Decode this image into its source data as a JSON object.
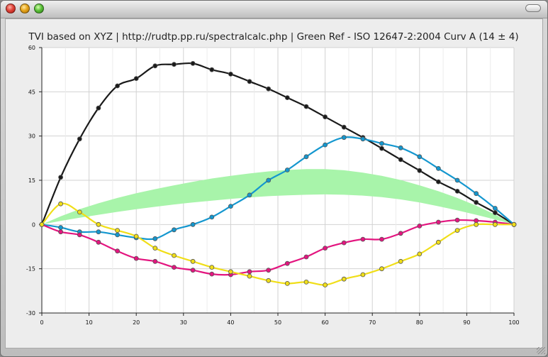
{
  "window": {
    "controls": [
      "close-icon",
      "minimize-icon",
      "zoom-icon",
      "toolbar-toggle-icon"
    ]
  },
  "chart_data": {
    "type": "line",
    "title": "TVI based on XYZ | http://rudtp.pp.ru/spectralcalc.php | Green Ref - ISO 12647-2:2004 Curv A (14 ± 4)",
    "xlabel": "",
    "ylabel": "",
    "xlim": [
      0,
      100
    ],
    "ylim": [
      -30,
      60
    ],
    "xticks": [
      0,
      10,
      20,
      30,
      40,
      50,
      60,
      70,
      80,
      90,
      100
    ],
    "yticks": [
      -30,
      -15,
      0,
      15,
      30,
      45,
      60
    ],
    "grid": true,
    "legend": "none",
    "band": {
      "color": "#a8f4aa",
      "x": [
        0,
        4,
        8,
        12,
        16,
        20,
        24,
        28,
        32,
        36,
        40,
        44,
        48,
        52,
        56,
        60,
        64,
        68,
        72,
        76,
        80,
        84,
        88,
        92,
        96,
        100
      ],
      "lower": [
        0,
        1.2,
        2.3,
        3.3,
        4.3,
        5.2,
        6,
        6.8,
        7.5,
        8.1,
        8.7,
        9.2,
        9.6,
        9.9,
        10.1,
        10.2,
        10.1,
        9.8,
        9.3,
        8.5,
        7.5,
        6.2,
        4.8,
        3.3,
        1.7,
        0
      ],
      "upper": [
        0,
        2.8,
        5.2,
        7.2,
        9,
        10.6,
        12,
        13.3,
        14.5,
        15.6,
        16.5,
        17.3,
        18,
        18.5,
        18.8,
        18.8,
        18.4,
        17.6,
        16.5,
        15.1,
        13.3,
        11.3,
        9,
        6.4,
        3.4,
        0
      ]
    },
    "x": [
      0,
      4,
      8,
      12,
      16,
      20,
      24,
      28,
      32,
      36,
      40,
      44,
      48,
      52,
      56,
      60,
      64,
      68,
      72,
      76,
      80,
      84,
      88,
      92,
      96,
      100
    ],
    "series": [
      {
        "color": "#1a1a1a",
        "values": [
          0,
          16,
          29,
          39.5,
          47,
          49.5,
          53.8,
          54.3,
          54.6,
          52.5,
          51,
          48.5,
          46,
          43,
          40,
          36.5,
          33,
          29.5,
          25.8,
          22,
          18.3,
          14.5,
          11.3,
          7.5,
          4,
          0
        ]
      },
      {
        "color": "#1497cf",
        "values": [
          0,
          -1,
          -2.5,
          -2.5,
          -3.5,
          -4.5,
          -4.8,
          -1.8,
          0,
          2.5,
          6.2,
          10,
          15,
          18.5,
          23,
          27,
          29.5,
          29,
          27.5,
          26,
          23,
          19,
          15,
          10.5,
          5.5,
          0
        ]
      },
      {
        "color": "#e3157f",
        "values": [
          0,
          -2.5,
          -3.5,
          -6,
          -9,
          -11.5,
          -12.5,
          -14.5,
          -15.5,
          -16.8,
          -17,
          -16,
          -15.5,
          -13.2,
          -11,
          -8,
          -6.2,
          -5,
          -5,
          -3,
          -0.5,
          0.8,
          1.5,
          1.3,
          0.8,
          0
        ]
      },
      {
        "color": "#f0de18",
        "values": [
          0,
          7,
          4.2,
          0,
          -2,
          -4,
          -8,
          -10.5,
          -12.5,
          -14.5,
          -16,
          -17.5,
          -19,
          -20,
          -19.5,
          -20.5,
          -18.5,
          -17,
          -15,
          -12.5,
          -10,
          -6,
          -2,
          0,
          0,
          0
        ]
      }
    ]
  }
}
